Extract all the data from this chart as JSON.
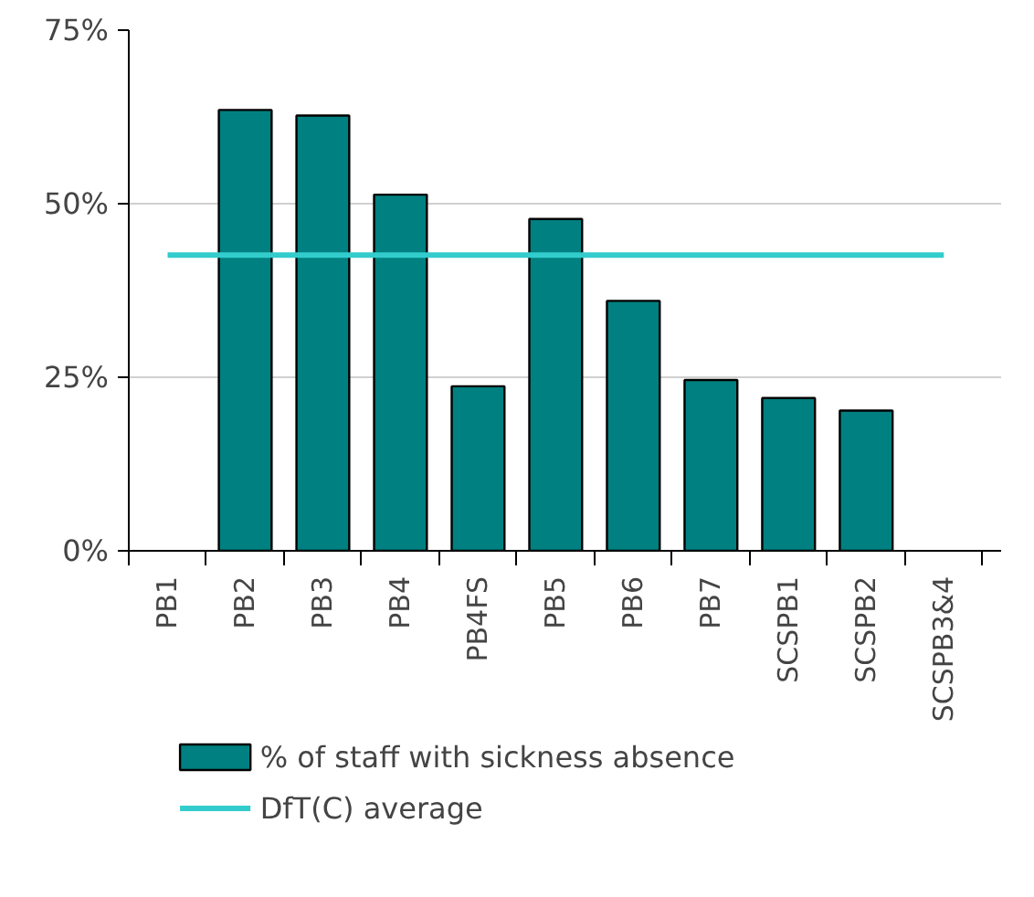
{
  "chart_data": {
    "type": "bar",
    "categories": [
      "PB1",
      "PB2",
      "PB3",
      "PB4",
      "PB4FS",
      "PB5",
      "PB6",
      "PB7",
      "SCSPB1",
      "SCSPB2",
      "SCSPB3&4"
    ],
    "series": [
      {
        "name": "% of staff with sickness absence",
        "color": "#008080",
        "values": [
          null,
          63.5,
          62.7,
          51.3,
          23.7,
          47.8,
          36.0,
          24.6,
          22.0,
          20.2,
          null
        ]
      },
      {
        "name": "DfT(C) average",
        "type": "line",
        "color": "#33cccc",
        "values": [
          42.6,
          42.6,
          42.6,
          42.6,
          42.6,
          42.6,
          42.6,
          42.6,
          42.6,
          42.6,
          42.6
        ]
      }
    ],
    "ylim": [
      0,
      75
    ],
    "yticks": [
      {
        "value": 0,
        "label": "0%"
      },
      {
        "value": 25,
        "label": "25%"
      },
      {
        "value": 50,
        "label": "50%"
      },
      {
        "value": 75,
        "label": "75%"
      }
    ],
    "grid": "y",
    "legend": "bottom"
  }
}
